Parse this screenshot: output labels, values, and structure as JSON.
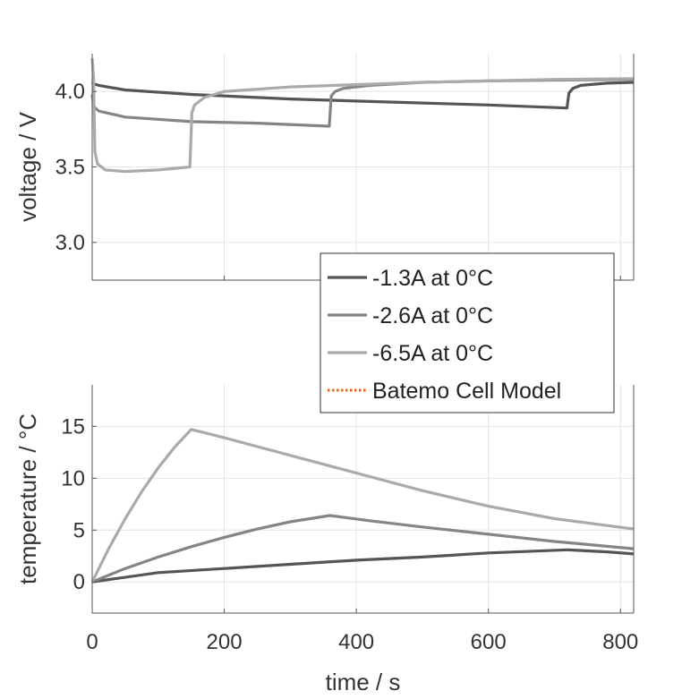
{
  "chart_data": [
    {
      "type": "line",
      "title": "",
      "xlabel": "",
      "ylabel": "voltage / V",
      "xlim": [
        0,
        820
      ],
      "ylim": [
        2.75,
        4.25
      ],
      "yticks": [
        3.0,
        3.5,
        4.0
      ],
      "ytick_labels": [
        "3.0",
        "3.5",
        "4.0"
      ],
      "xticks": [
        0,
        200,
        400,
        600,
        800
      ],
      "grid": true,
      "series": [
        {
          "name": "-1.3A at 0°C",
          "color": "#555555",
          "x": [
            0,
            2,
            10,
            50,
            150,
            300,
            450,
            600,
            719,
            722,
            728,
            740,
            780,
            820
          ],
          "y": [
            4.06,
            4.05,
            4.04,
            4.01,
            3.98,
            3.95,
            3.93,
            3.91,
            3.89,
            3.99,
            4.02,
            4.04,
            4.055,
            4.06
          ]
        },
        {
          "name": "-2.6A at 0°C",
          "color": "#858585",
          "x": [
            0,
            2,
            10,
            50,
            150,
            250,
            359,
            362,
            368,
            380,
            420,
            500,
            600,
            700,
            820
          ],
          "y": [
            3.98,
            3.9,
            3.87,
            3.83,
            3.8,
            3.79,
            3.77,
            3.97,
            4.0,
            4.02,
            4.04,
            4.06,
            4.07,
            4.075,
            4.08
          ]
        },
        {
          "name": "-6.5A at 0°C",
          "color": "#aaaaaa",
          "x": [
            0,
            2,
            4,
            8,
            20,
            50,
            100,
            148,
            151,
            155,
            170,
            200,
            300,
            500,
            700,
            820
          ],
          "y": [
            4.22,
            4.1,
            3.6,
            3.52,
            3.48,
            3.47,
            3.48,
            3.5,
            3.86,
            3.91,
            3.96,
            4.0,
            4.03,
            4.06,
            4.08,
            4.085
          ]
        }
      ]
    },
    {
      "type": "line",
      "title": "",
      "xlabel": "time / s",
      "ylabel": "temperature / °C",
      "xlim": [
        0,
        820
      ],
      "ylim": [
        -3,
        19
      ],
      "yticks": [
        0,
        5,
        10,
        15
      ],
      "ytick_labels": [
        "0",
        "5",
        "10",
        "15"
      ],
      "xticks": [
        0,
        200,
        400,
        600,
        800
      ],
      "xtick_labels": [
        "0",
        "200",
        "400",
        "600",
        "800"
      ],
      "grid": true,
      "series": [
        {
          "name": "-1.3A at 0°C",
          "color": "#555555",
          "x": [
            0,
            100,
            200,
            300,
            400,
            500,
            600,
            720,
            780,
            820
          ],
          "y": [
            0,
            0.9,
            1.3,
            1.7,
            2.1,
            2.4,
            2.8,
            3.1,
            2.9,
            2.7
          ]
        },
        {
          "name": "-2.6A at 0°C",
          "color": "#858585",
          "x": [
            0,
            50,
            100,
            150,
            200,
            250,
            300,
            360,
            420,
            500,
            600,
            700,
            820
          ],
          "y": [
            0,
            1.3,
            2.4,
            3.4,
            4.3,
            5.1,
            5.8,
            6.4,
            5.9,
            5.3,
            4.6,
            3.9,
            3.2
          ]
        },
        {
          "name": "-6.5A at 0°C",
          "color": "#aaaaaa",
          "x": [
            0,
            25,
            50,
            75,
            100,
            125,
            150,
            200,
            300,
            400,
            500,
            600,
            700,
            820
          ],
          "y": [
            0,
            3.2,
            6.1,
            8.7,
            11.0,
            13.0,
            14.7,
            13.9,
            12.2,
            10.5,
            8.8,
            7.3,
            6.1,
            5.1
          ]
        }
      ]
    }
  ],
  "legend": {
    "location": "between panels, right",
    "entries": [
      {
        "label": "-1.3A at 0°C",
        "color": "#555555",
        "style": "solid"
      },
      {
        "label": "-2.6A at 0°C",
        "color": "#858585",
        "style": "solid"
      },
      {
        "label": "-6.5A at 0°C",
        "color": "#aaaaaa",
        "style": "solid"
      },
      {
        "label": "Batemo Cell Model",
        "color": "#e8661a",
        "style": "dotted"
      }
    ]
  }
}
